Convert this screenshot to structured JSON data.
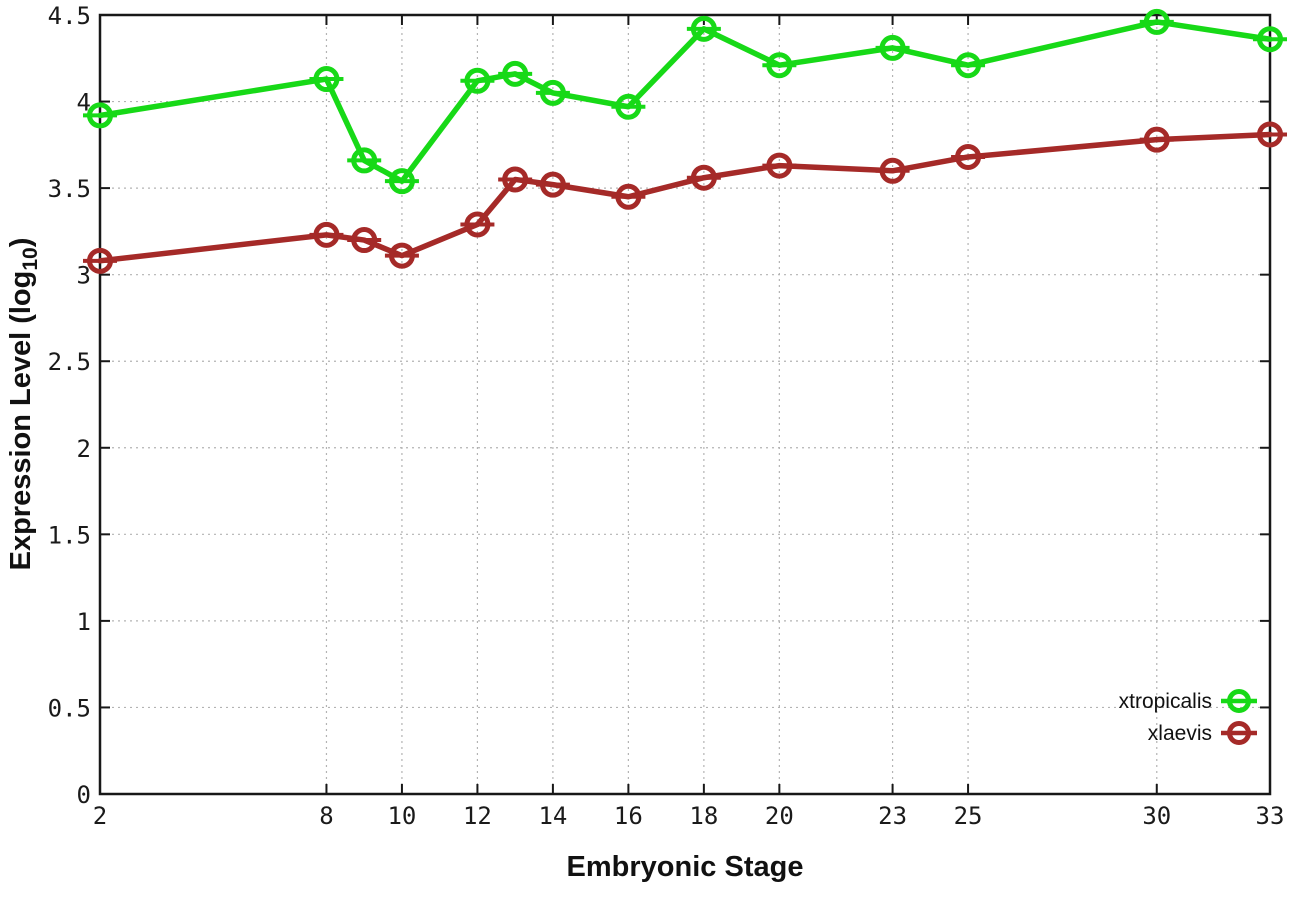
{
  "figure": {
    "xlabel": "Embryonic Stage",
    "ylabel_main": "Expression Level (log",
    "ylabel_sub": "10",
    "ylabel_suffix": ")",
    "background_color": "#ffffff",
    "border_color": "#181818",
    "grid_color": "#b3b3b3",
    "text_color": "#1a1a1a"
  },
  "legend": {
    "position": "inside-bottom-right",
    "entries": [
      {
        "label": "xtropicalis",
        "color": "#17d917"
      },
      {
        "label": "xlaevis",
        "color": "#a52a28"
      }
    ]
  },
  "chart_data": {
    "type": "line",
    "title": "",
    "xlabel": "Embryonic Stage",
    "ylabel": "Expression Level (log10)",
    "xlim": [
      2,
      33
    ],
    "ylim": [
      0,
      4.5
    ],
    "x_ticks": [
      2,
      8,
      10,
      12,
      14,
      16,
      18,
      20,
      23,
      25,
      30,
      33
    ],
    "y_ticks": [
      0,
      0.5,
      1,
      1.5,
      2,
      2.5,
      3,
      3.5,
      4,
      4.5
    ],
    "grid": true,
    "marker": "open-circle-with-error-cap",
    "legend_position": "inside bottom-right",
    "series": [
      {
        "name": "xtropicalis",
        "color": "#17d917",
        "x": [
          2,
          8,
          9,
          10,
          12,
          13,
          14,
          16,
          18,
          20,
          23,
          25,
          30,
          33
        ],
        "y": [
          3.92,
          4.13,
          3.66,
          3.54,
          4.12,
          4.16,
          4.05,
          3.97,
          4.42,
          4.21,
          4.31,
          4.21,
          4.46,
          4.36
        ]
      },
      {
        "name": "xlaevis",
        "color": "#a52a28",
        "x": [
          2,
          8,
          9,
          10,
          12,
          13,
          14,
          16,
          18,
          20,
          23,
          25,
          30,
          33
        ],
        "y": [
          3.08,
          3.23,
          3.2,
          3.11,
          3.29,
          3.55,
          3.52,
          3.45,
          3.56,
          3.63,
          3.6,
          3.68,
          3.78,
          3.81
        ]
      }
    ]
  }
}
